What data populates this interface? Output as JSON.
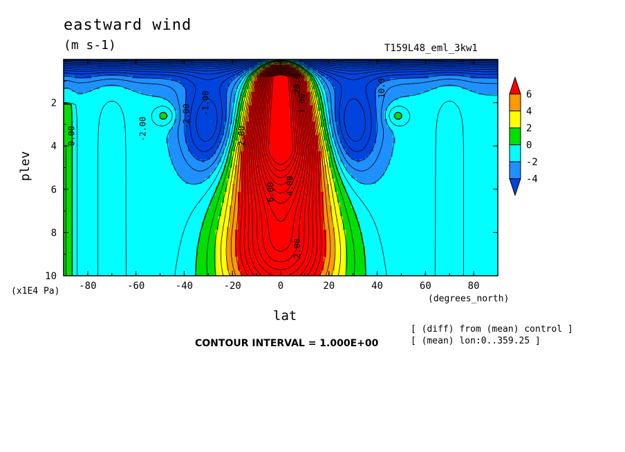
{
  "chart_data": {
    "type": "heatmap",
    "title": "eastward wind",
    "units": "(m s-1)",
    "run_label": "T159L48_eml_3kw1",
    "xlabel": "lat",
    "x_unit_label": "(degrees_north)",
    "ylabel": "plev",
    "y_unit_label": "(x1E4 Pa)",
    "xlim": [
      -90,
      90
    ],
    "ylim": [
      10,
      0
    ],
    "x_ticks": [
      "-80",
      "-60",
      "-40",
      "-20",
      "0",
      "20",
      "40",
      "60",
      "80"
    ],
    "y_ticks": [
      "2",
      "4",
      "6",
      "8",
      "10"
    ],
    "contour_interval": "CONTOUR INTERVAL = 1.000E+00",
    "notes": [
      "[ (diff) from (mean) control ]",
      "[ (mean) lon:0..359.25 ]"
    ],
    "colorbar": {
      "labels": [
        "6",
        "4",
        "2",
        "0",
        "-2",
        "-4"
      ],
      "levels": [
        6,
        4,
        2,
        0,
        -2,
        -4
      ],
      "colors": [
        "#ff0000",
        "#ff9900",
        "#ffff00",
        "#00e000",
        "#00ffff",
        "#1e90ff",
        "#0044dd"
      ]
    },
    "contour_labels": [
      "0.00",
      "-2.00",
      "-2.00",
      "-1.00",
      "2.00",
      "2.00",
      "1.00",
      "6.00",
      "4.00",
      "20.0",
      "10.0"
    ],
    "field_summary": {
      "equatorial_max": 20,
      "southern_pocket_max_lat": -48,
      "northern_pocket_max_lat": 48
    }
  }
}
